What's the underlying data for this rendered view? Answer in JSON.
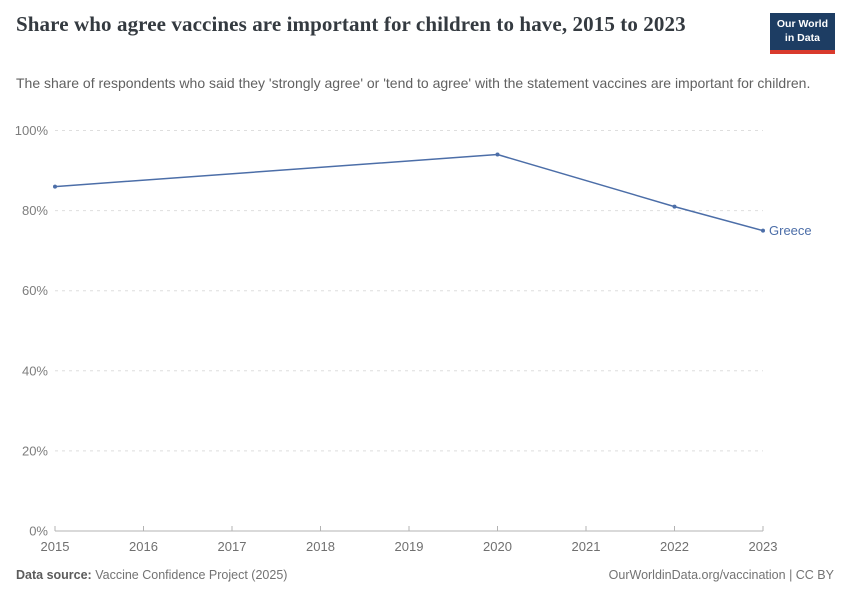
{
  "header": {
    "title": "Share who agree vaccines are important for children to have, 2015 to 2023",
    "subtitle": "The share of respondents who said they 'strongly agree' or 'tend to agree' with the statement vaccines are important for children.",
    "logo": {
      "line1": "Our World",
      "line2": "in Data",
      "bg_color": "#1d3d63",
      "bar_color": "#d93a2d"
    }
  },
  "chart_data": {
    "type": "line",
    "title": "Share who agree vaccines are important for children to have, 2015 to 2023",
    "x": [
      2015,
      2020,
      2022,
      2023
    ],
    "series": [
      {
        "name": "Greece",
        "color": "#4c6ea8",
        "values": [
          86,
          94,
          81,
          75
        ]
      }
    ],
    "x_ticks": [
      2015,
      2016,
      2017,
      2018,
      2019,
      2020,
      2021,
      2022,
      2023
    ],
    "y_ticks": [
      0,
      20,
      40,
      60,
      80,
      100
    ],
    "y_tick_suffix": "%",
    "xlim": [
      2015,
      2023
    ],
    "ylim": [
      0,
      100
    ],
    "xlabel": "",
    "ylabel": "",
    "grid": "horizontal-dashed",
    "legend": "inline-end-label",
    "grid_color": "#dedede",
    "axis_color": "#b3b3b3"
  },
  "footer": {
    "source_label": "Data source:",
    "source_text": " Vaccine Confidence Project (2025)",
    "right_text": "OurWorldinData.org/vaccination | CC BY"
  }
}
